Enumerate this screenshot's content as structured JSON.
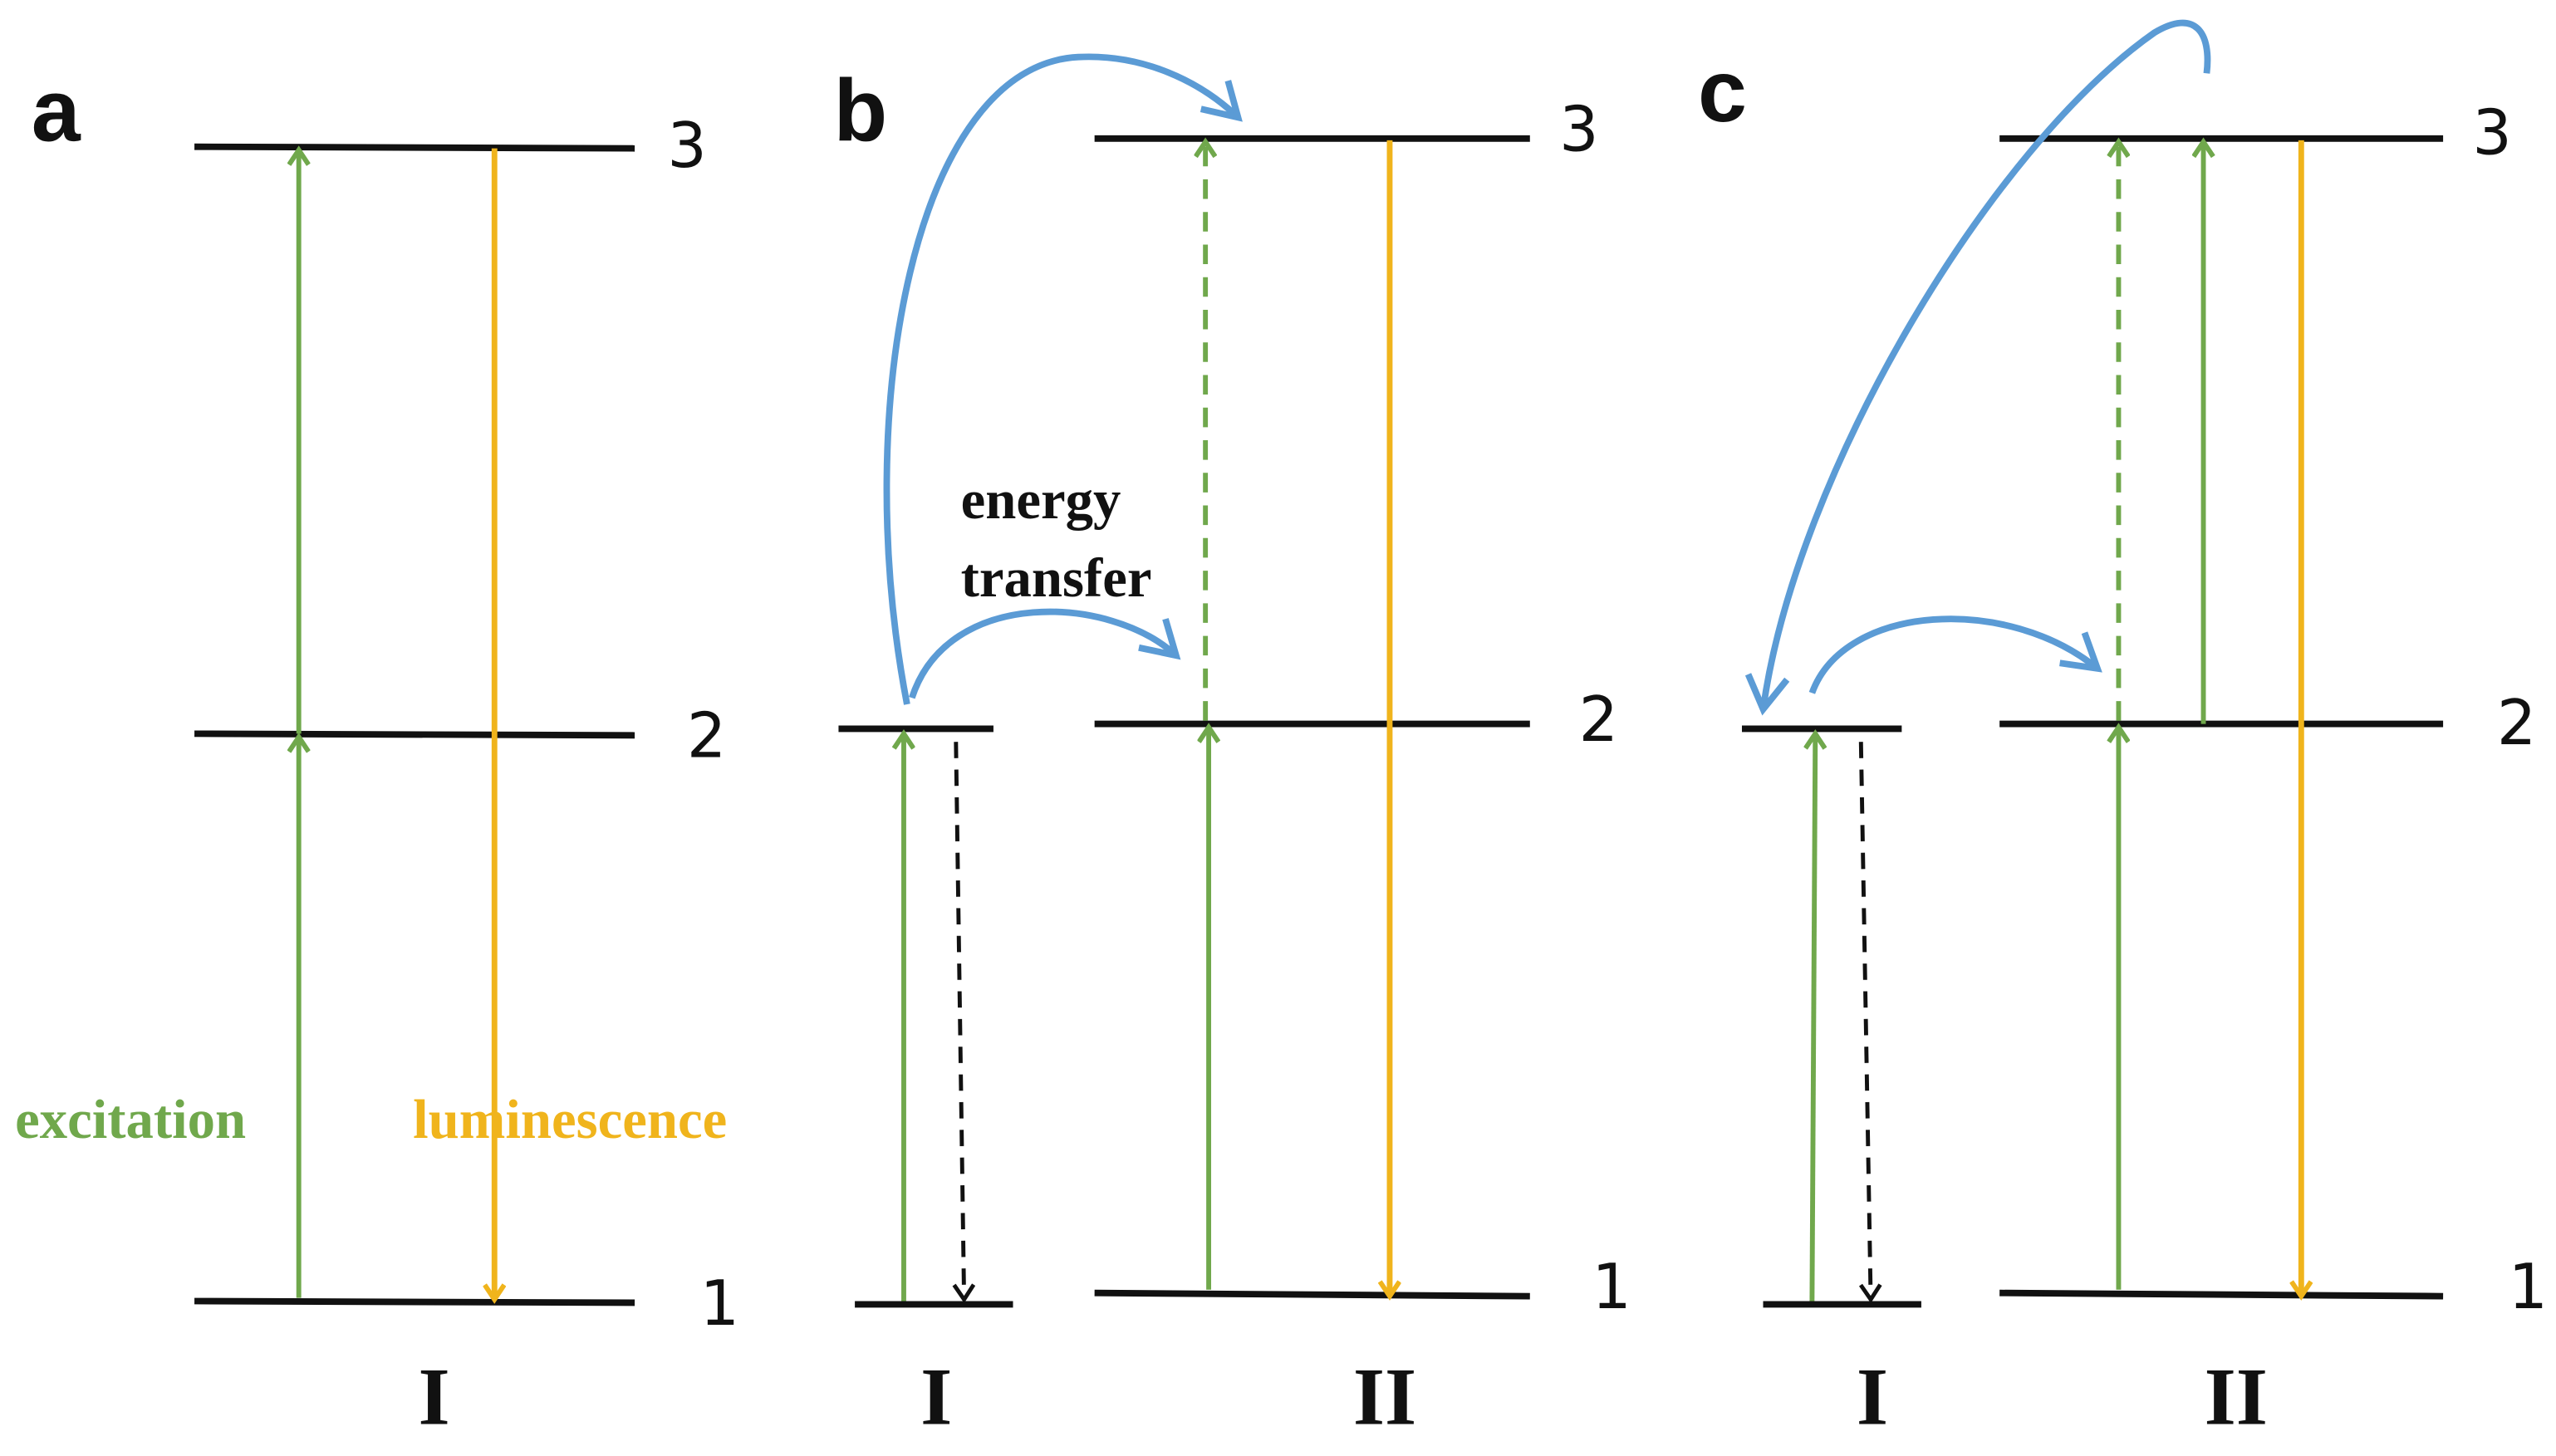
{
  "panels": [
    {
      "label": "a",
      "levels": [
        "1",
        "2",
        "3"
      ],
      "ions": [
        "I"
      ],
      "annotations": [
        "excitation",
        "luminescence"
      ]
    },
    {
      "label": "b",
      "levels": [
        "1",
        "2",
        "3"
      ],
      "ions": [
        "I",
        "II"
      ],
      "annotations": [
        "energy",
        "transfer"
      ]
    },
    {
      "label": "c",
      "levels": [
        "1",
        "2",
        "3"
      ],
      "ions": [
        "I",
        "II"
      ]
    }
  ]
}
